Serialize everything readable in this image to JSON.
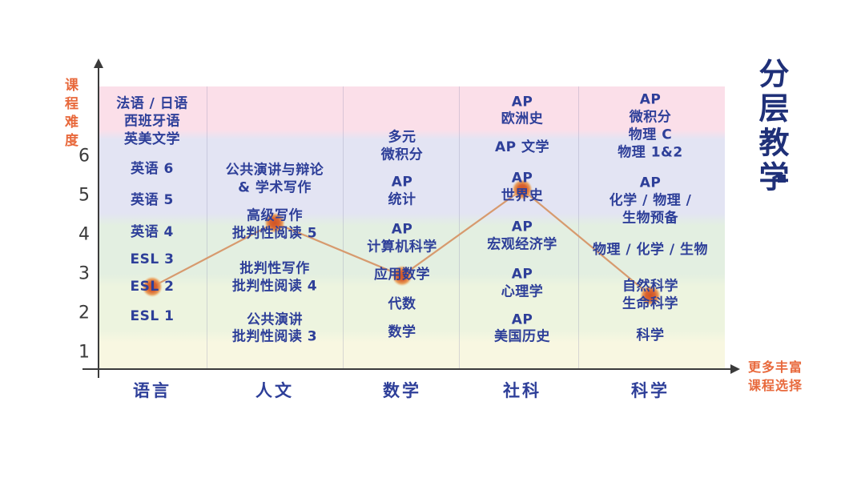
{
  "colors": {
    "text_blue": "#2e3f99",
    "title_navy": "#1f3078",
    "orange": "#e8693c",
    "line_orange": "#d79a6e",
    "dot_orange": "#d4582a",
    "axis_dark": "#3b3b3b",
    "band_pink": "#fbdfe9",
    "band_lavender": "#e3e4f3",
    "band_green": "#e3efe1",
    "band_lightgreen": "#edf4df",
    "band_yellow": "#f8f7e1"
  },
  "chart_data": {
    "type": "line",
    "title": "分层教学",
    "ylabel": "课程难度",
    "x_note": "更多丰富\n课程选择",
    "yticks": [
      6,
      5,
      4,
      3,
      2,
      1
    ],
    "ylim": [
      0,
      7.8
    ],
    "grid": false,
    "categories": [
      "语言",
      "人文",
      "数学",
      "社科",
      "科学"
    ],
    "columns": [
      {
        "category": "语言",
        "courses": [
          {
            "name": "法语 / 日语\n西班牙语",
            "level": 7.1
          },
          {
            "name": "英美文学",
            "level": 6.4
          },
          {
            "name": "英语 6",
            "level": 5.65
          },
          {
            "name": "英语 5",
            "level": 4.85
          },
          {
            "name": "英语 4",
            "level": 4.05
          },
          {
            "name": "ESL 3",
            "level": 3.35
          },
          {
            "name": "ESL 2",
            "level": 2.65
          },
          {
            "name": "ESL 1",
            "level": 1.9
          }
        ]
      },
      {
        "category": "人文",
        "courses": [
          {
            "name": "公共演讲与辩论\n& 学术写作",
            "level": 5.4
          },
          {
            "name": "高级写作\n批判性阅读 5",
            "level": 4.25
          },
          {
            "name": "批判性写作\n批判性阅读 4",
            "level": 2.9
          },
          {
            "name": "公共演讲\n批判性阅读 3",
            "level": 1.6
          }
        ]
      },
      {
        "category": "数学",
        "courses": [
          {
            "name": "多元\n微积分",
            "level": 6.25
          },
          {
            "name": "AP\n统计",
            "level": 5.1
          },
          {
            "name": "AP\n计算机科学",
            "level": 3.9
          },
          {
            "name": "应用数学",
            "level": 2.95
          },
          {
            "name": "代数",
            "level": 2.2
          },
          {
            "name": "数学",
            "level": 1.5
          }
        ]
      },
      {
        "category": "社科",
        "courses": [
          {
            "name": "AP\n欧洲史",
            "level": 7.15
          },
          {
            "name": "AP 文学",
            "level": 6.2
          },
          {
            "name": "AP\n世界史",
            "level": 5.2
          },
          {
            "name": "AP\n宏观经济学",
            "level": 3.95
          },
          {
            "name": "AP\n心理学",
            "level": 2.75
          },
          {
            "name": "AP\n美国历史",
            "level": 1.6
          }
        ]
      },
      {
        "category": "科学",
        "courses": [
          {
            "name": "AP\n微积分\n物理 C\n物理 1&2",
            "level": 6.75
          },
          {
            "name": "AP\n化学 / 物理 /\n生物预备",
            "level": 4.85
          },
          {
            "name": "物理 / 化学 / 生物",
            "level": 3.6
          },
          {
            "name": "自然科学\n生命科学",
            "level": 2.45
          },
          {
            "name": "科学",
            "level": 1.4
          }
        ]
      }
    ],
    "highlight_path": [
      {
        "category_index": 0,
        "course": "ESL 2",
        "level": 2.67
      },
      {
        "category_index": 1,
        "course": "高级写作 批判性阅读 5",
        "level": 4.3
      },
      {
        "category_index": 2,
        "course": "应用数学",
        "level": 2.95
      },
      {
        "category_index": 3,
        "course": "AP 世界史",
        "level": 5.15
      },
      {
        "category_index": 4,
        "course": "自然科学 生命科学",
        "level": 2.45
      }
    ]
  }
}
